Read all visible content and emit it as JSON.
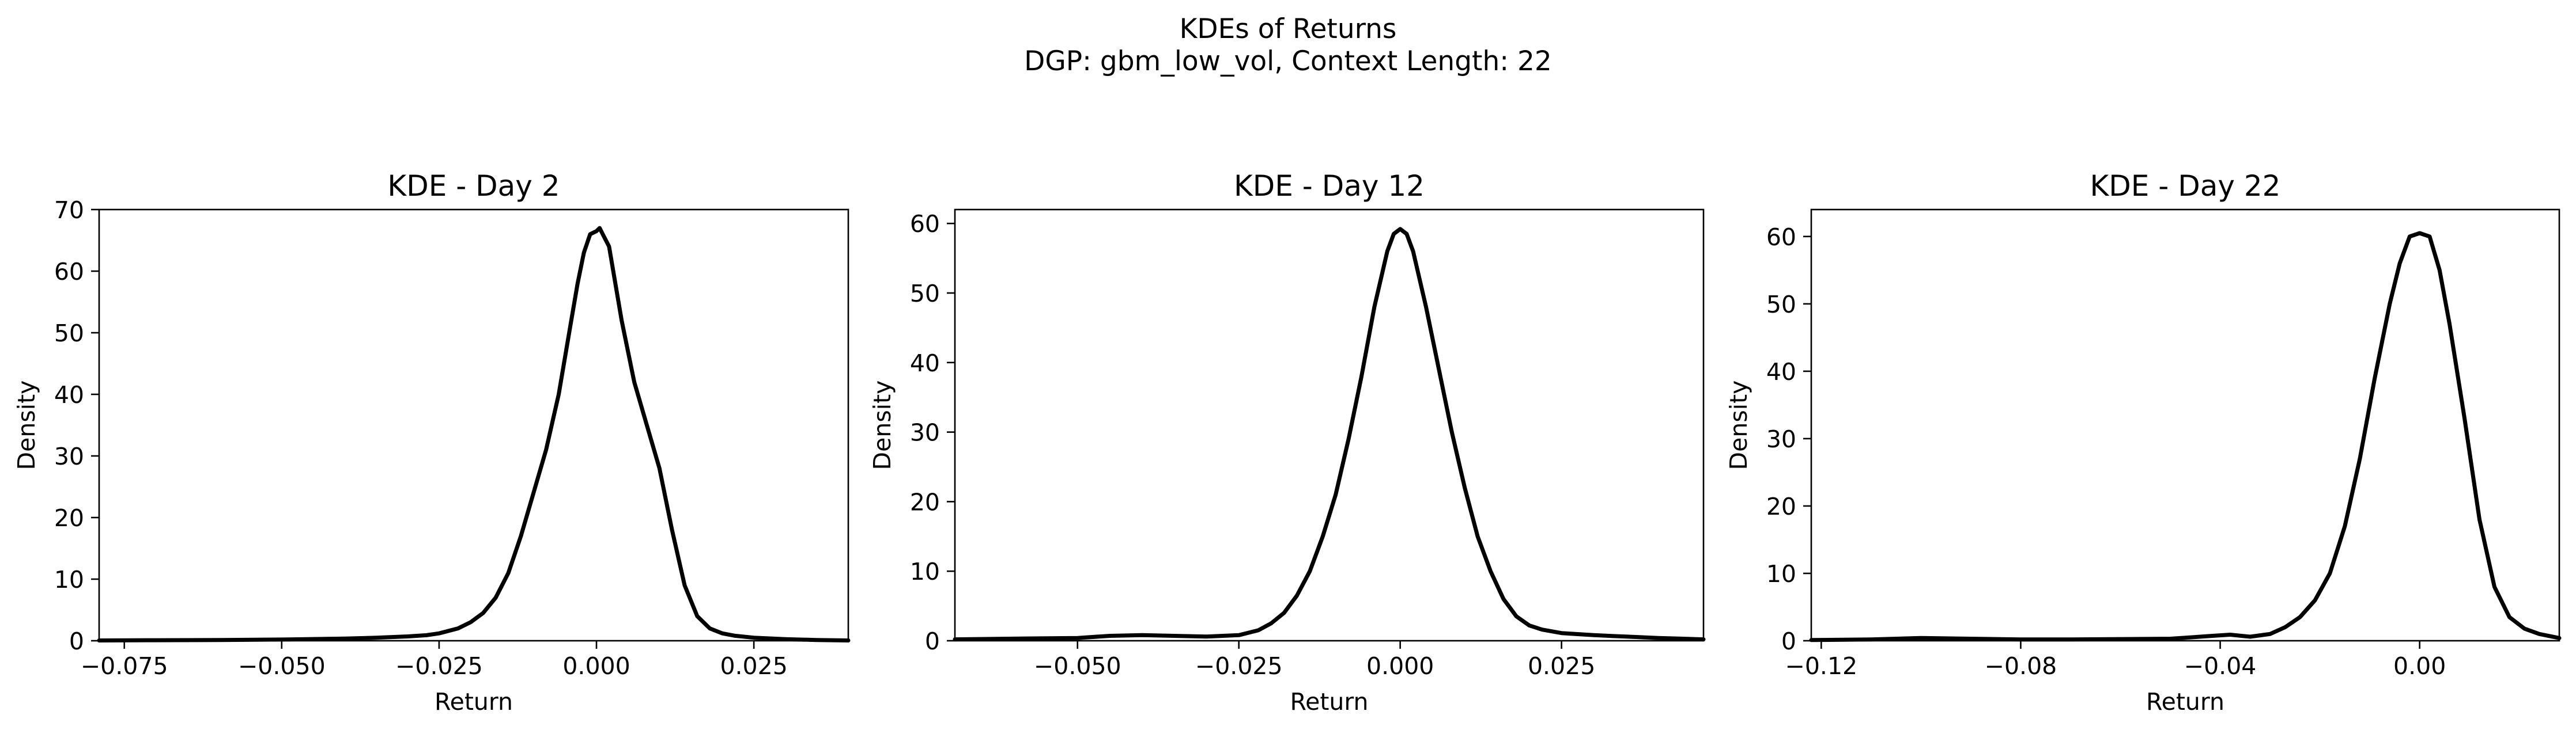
{
  "figure": {
    "title_line1": "KDEs of Returns",
    "title_line2": "DGP: gbm_low_vol, Context Length: 22"
  },
  "chart_data": [
    {
      "type": "line",
      "title": "KDE - Day 2",
      "xlabel": "Return",
      "ylabel": "Density",
      "xlim": [
        -0.079,
        0.04
      ],
      "ylim": [
        0,
        70
      ],
      "xticks": [
        -0.075,
        -0.05,
        -0.025,
        0.0,
        0.025
      ],
      "xtick_labels": [
        "−0.075",
        "−0.050",
        "−0.025",
        "0.000",
        "0.025"
      ],
      "yticks": [
        0,
        10,
        20,
        30,
        40,
        50,
        60,
        70
      ],
      "grid": false,
      "series": [
        {
          "color": "#000000",
          "x": [
            -0.079,
            -0.07,
            -0.06,
            -0.05,
            -0.04,
            -0.035,
            -0.03,
            -0.027,
            -0.025,
            -0.022,
            -0.02,
            -0.018,
            -0.016,
            -0.014,
            -0.012,
            -0.01,
            -0.008,
            -0.006,
            -0.004,
            -0.003,
            -0.002,
            -0.001,
            0.0,
            0.0005,
            0.001,
            0.002,
            0.003,
            0.004,
            0.006,
            0.008,
            0.01,
            0.012,
            0.014,
            0.016,
            0.018,
            0.02,
            0.022,
            0.025,
            0.03,
            0.035,
            0.04
          ],
          "y": [
            0.05,
            0.08,
            0.12,
            0.2,
            0.35,
            0.5,
            0.7,
            0.9,
            1.2,
            2.0,
            3.0,
            4.5,
            7.0,
            11.0,
            17.0,
            24.0,
            31.0,
            40.0,
            52.0,
            58.0,
            63.0,
            66.0,
            66.5,
            67.0,
            66.0,
            64.0,
            58.0,
            52.0,
            42.0,
            35.0,
            28.0,
            18.0,
            9.0,
            4.0,
            2.0,
            1.2,
            0.8,
            0.5,
            0.25,
            0.12,
            0.05
          ]
        }
      ]
    },
    {
      "type": "line",
      "title": "KDE - Day 12",
      "xlabel": "Return",
      "ylabel": "Density",
      "xlim": [
        -0.069,
        0.047
      ],
      "ylim": [
        0,
        62
      ],
      "xticks": [
        -0.05,
        -0.025,
        0.0,
        0.025
      ],
      "xtick_labels": [
        "−0.050",
        "−0.025",
        "0.000",
        "0.025"
      ],
      "yticks": [
        0,
        10,
        20,
        30,
        40,
        50,
        60
      ],
      "grid": false,
      "series": [
        {
          "color": "#000000",
          "x": [
            -0.069,
            -0.06,
            -0.05,
            -0.045,
            -0.04,
            -0.035,
            -0.03,
            -0.025,
            -0.022,
            -0.02,
            -0.018,
            -0.016,
            -0.014,
            -0.012,
            -0.01,
            -0.008,
            -0.006,
            -0.004,
            -0.002,
            -0.001,
            0.0,
            0.001,
            0.002,
            0.004,
            0.006,
            0.008,
            0.01,
            0.012,
            0.014,
            0.016,
            0.018,
            0.02,
            0.022,
            0.025,
            0.03,
            0.035,
            0.04,
            0.047
          ],
          "y": [
            0.2,
            0.3,
            0.4,
            0.7,
            0.8,
            0.7,
            0.6,
            0.8,
            1.5,
            2.5,
            4.0,
            6.5,
            10.0,
            15.0,
            21.0,
            29.0,
            38.0,
            48.0,
            56.0,
            58.5,
            59.2,
            58.5,
            56.0,
            48.0,
            39.0,
            30.0,
            22.0,
            15.0,
            10.0,
            6.0,
            3.5,
            2.2,
            1.6,
            1.1,
            0.8,
            0.6,
            0.4,
            0.2
          ]
        }
      ]
    },
    {
      "type": "line",
      "title": "KDE - Day 22",
      "xlabel": "Return",
      "ylabel": "Density",
      "xlim": [
        -0.122,
        0.028
      ],
      "ylim": [
        0,
        64
      ],
      "xticks": [
        -0.12,
        -0.08,
        -0.04,
        0.0
      ],
      "xtick_labels": [
        "−0.12",
        "−0.08",
        "−0.04",
        "0.00"
      ],
      "yticks": [
        0,
        10,
        20,
        30,
        40,
        50,
        60
      ],
      "grid": false,
      "series": [
        {
          "color": "#000000",
          "x": [
            -0.122,
            -0.11,
            -0.1,
            -0.09,
            -0.08,
            -0.07,
            -0.06,
            -0.05,
            -0.042,
            -0.038,
            -0.034,
            -0.03,
            -0.027,
            -0.024,
            -0.021,
            -0.018,
            -0.015,
            -0.012,
            -0.009,
            -0.006,
            -0.004,
            -0.002,
            0.0,
            0.002,
            0.004,
            0.006,
            0.009,
            0.012,
            0.015,
            0.018,
            0.021,
            0.024,
            0.028
          ],
          "y": [
            0.1,
            0.2,
            0.4,
            0.3,
            0.2,
            0.2,
            0.25,
            0.3,
            0.7,
            0.9,
            0.6,
            1.0,
            2.0,
            3.5,
            6.0,
            10.0,
            17.0,
            27.0,
            39.0,
            50.0,
            56.0,
            60.0,
            60.5,
            60.0,
            55.0,
            47.0,
            33.0,
            18.0,
            8.0,
            3.5,
            1.8,
            1.0,
            0.4
          ]
        }
      ]
    }
  ]
}
